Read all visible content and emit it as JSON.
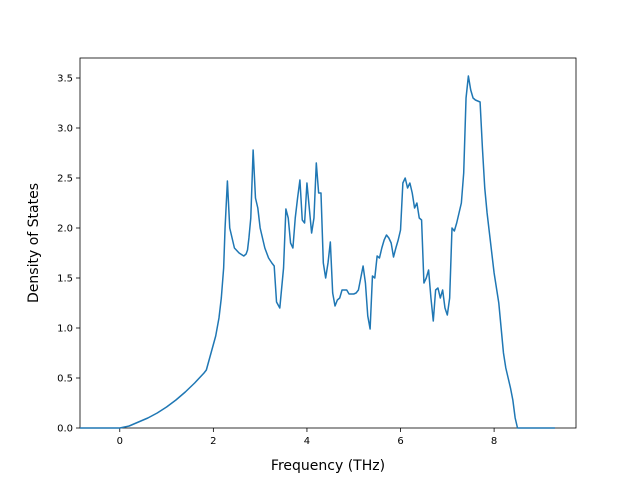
{
  "chart_data": {
    "type": "line",
    "title": "",
    "xlabel": "Frequency (THz)",
    "ylabel": "Density of States",
    "xlim": [
      -0.85,
      9.75
    ],
    "ylim": [
      0.0,
      3.7
    ],
    "xticks": [
      0,
      2,
      4,
      6,
      8
    ],
    "yticks": [
      0.0,
      0.5,
      1.0,
      1.5,
      2.0,
      2.5,
      3.0,
      3.5
    ],
    "xtick_labels": [
      "0",
      "2",
      "4",
      "6",
      "8"
    ],
    "ytick_labels": [
      "0.0",
      "0.5",
      "1.0",
      "1.5",
      "2.0",
      "2.5",
      "3.0",
      "3.5"
    ],
    "grid": false,
    "legend": "none",
    "line_color": "#1f77b4",
    "series": [
      {
        "x": [
          -0.85,
          -0.5,
          0.0,
          0.2,
          0.4,
          0.6,
          0.8,
          1.0,
          1.2,
          1.4,
          1.6,
          1.8,
          1.85,
          1.95,
          2.05,
          2.12,
          2.17,
          2.22,
          2.25,
          2.3,
          2.35,
          2.45,
          2.55,
          2.65,
          2.7,
          2.73,
          2.76,
          2.8,
          2.85,
          2.9,
          2.95,
          3.0,
          3.1,
          3.18,
          3.25,
          3.3,
          3.35,
          3.42,
          3.5,
          3.55,
          3.6,
          3.65,
          3.7,
          3.75,
          3.8,
          3.85,
          3.9,
          3.95,
          4.0,
          4.05,
          4.1,
          4.15,
          4.2,
          4.25,
          4.3,
          4.35,
          4.4,
          4.45,
          4.5,
          4.55,
          4.6,
          4.65,
          4.7,
          4.75,
          4.8,
          4.85,
          4.9,
          4.95,
          5.0,
          5.05,
          5.1,
          5.15,
          5.2,
          5.25,
          5.3,
          5.35,
          5.4,
          5.45,
          5.5,
          5.55,
          5.6,
          5.65,
          5.7,
          5.75,
          5.8,
          5.85,
          5.9,
          5.95,
          6.0,
          6.05,
          6.1,
          6.15,
          6.2,
          6.25,
          6.3,
          6.35,
          6.4,
          6.45,
          6.5,
          6.55,
          6.6,
          6.65,
          6.7,
          6.75,
          6.8,
          6.85,
          6.9,
          6.95,
          7.0,
          7.05,
          7.1,
          7.15,
          7.2,
          7.25,
          7.3,
          7.35,
          7.4,
          7.45,
          7.5,
          7.55,
          7.6,
          7.7,
          7.75,
          7.8,
          7.85,
          7.9,
          8.0,
          8.1,
          8.15,
          8.2,
          8.25,
          8.3,
          8.35,
          8.4,
          8.45,
          8.5,
          8.6,
          9.3
        ],
        "y": [
          0.0,
          0.0,
          0.0,
          0.02,
          0.06,
          0.1,
          0.15,
          0.21,
          0.28,
          0.36,
          0.45,
          0.55,
          0.58,
          0.75,
          0.92,
          1.1,
          1.3,
          1.6,
          2.0,
          2.47,
          2.0,
          1.8,
          1.75,
          1.72,
          1.74,
          1.78,
          1.9,
          2.1,
          2.78,
          2.3,
          2.2,
          2.0,
          1.8,
          1.7,
          1.65,
          1.62,
          1.26,
          1.2,
          1.6,
          2.19,
          2.1,
          1.85,
          1.8,
          2.1,
          2.3,
          2.48,
          2.08,
          2.05,
          2.45,
          2.2,
          1.95,
          2.1,
          2.65,
          2.35,
          2.35,
          1.65,
          1.5,
          1.65,
          1.86,
          1.35,
          1.22,
          1.28,
          1.3,
          1.38,
          1.38,
          1.38,
          1.34,
          1.34,
          1.34,
          1.35,
          1.38,
          1.5,
          1.62,
          1.45,
          1.12,
          0.99,
          1.52,
          1.5,
          1.72,
          1.7,
          1.8,
          1.88,
          1.93,
          1.9,
          1.85,
          1.71,
          1.8,
          1.88,
          1.98,
          2.45,
          2.5,
          2.4,
          2.45,
          2.35,
          2.2,
          2.25,
          2.1,
          2.08,
          1.45,
          1.5,
          1.58,
          1.3,
          1.07,
          1.38,
          1.4,
          1.3,
          1.38,
          1.2,
          1.13,
          1.3,
          2.0,
          1.97,
          2.05,
          2.15,
          2.25,
          2.55,
          3.3,
          3.52,
          3.38,
          3.3,
          3.28,
          3.26,
          2.8,
          2.4,
          2.15,
          1.95,
          1.55,
          1.25,
          1.0,
          0.75,
          0.6,
          0.5,
          0.4,
          0.28,
          0.1,
          0.0,
          0.0,
          0.0
        ]
      }
    ]
  }
}
